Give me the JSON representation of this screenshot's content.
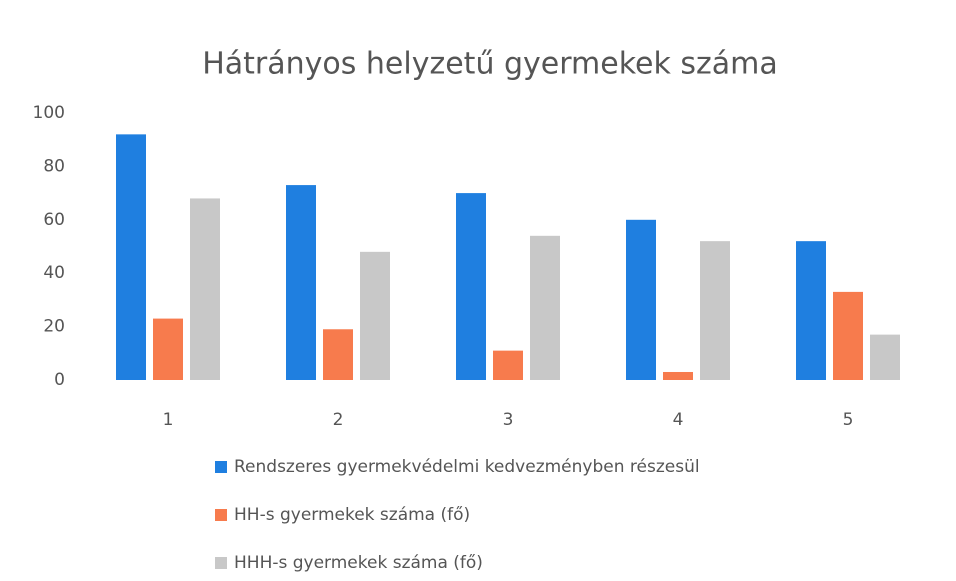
{
  "chart_data": {
    "type": "bar",
    "title": "Hátrányos helyzetű gyermekek száma",
    "categories": [
      "1",
      "2",
      "3",
      "4",
      "5"
    ],
    "series": [
      {
        "name": "Rendszeres gyermekvédelmi kedvezményben részesül",
        "color": "#1f7fe0",
        "values": [
          92,
          73,
          70,
          60,
          52
        ]
      },
      {
        "name": "HH-s gyermekek száma (fő)",
        "color": "#f77b4d",
        "values": [
          23,
          19,
          11,
          3,
          33
        ]
      },
      {
        "name": "HHH-s gyermekek száma (fő)",
        "color": "#c8c8c8",
        "values": [
          68,
          48,
          54,
          52,
          17
        ]
      }
    ],
    "ylim": [
      0,
      100
    ],
    "yticks": [
      0,
      20,
      40,
      60,
      80,
      100
    ],
    "grid": false
  }
}
